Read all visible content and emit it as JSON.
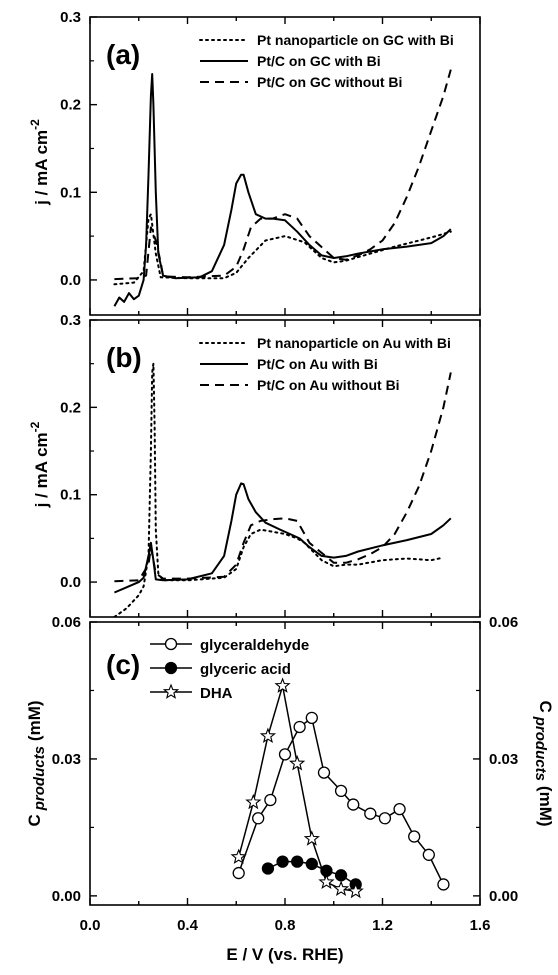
{
  "chart_data": [
    {
      "type": "line",
      "panel_label": "(a)",
      "ylabel": "j / mA cm",
      "ylabel_sup": "-2",
      "ylim": [
        -0.04,
        0.3
      ],
      "yticks": [
        0.0,
        0.1,
        0.2,
        0.3
      ],
      "ytick_labels": [
        "0.0",
        "0.1",
        "0.2",
        "0.3"
      ],
      "legend_position": "top-right",
      "series": [
        {
          "name": "Pt nanoparticle on GC with Bi",
          "style": "dotted",
          "x": [
            0.1,
            0.18,
            0.22,
            0.24,
            0.25,
            0.27,
            0.29,
            0.4,
            0.55,
            0.6,
            0.65,
            0.72,
            0.8,
            0.88,
            0.95,
            1.0,
            1.05,
            1.15,
            1.25,
            1.35,
            1.42,
            1.48
          ],
          "y": [
            -0.005,
            -0.003,
            0.01,
            0.07,
            0.075,
            0.03,
            0.003,
            0.002,
            0.002,
            0.008,
            0.025,
            0.045,
            0.05,
            0.043,
            0.025,
            0.02,
            0.022,
            0.03,
            0.038,
            0.045,
            0.05,
            0.055
          ]
        },
        {
          "name": "Pt/C on GC with Bi",
          "style": "solid",
          "x": [
            0.1,
            0.12,
            0.14,
            0.16,
            0.18,
            0.2,
            0.22,
            0.23,
            0.24,
            0.25,
            0.255,
            0.26,
            0.27,
            0.28,
            0.3,
            0.35,
            0.45,
            0.5,
            0.55,
            0.58,
            0.6,
            0.62,
            0.63,
            0.65,
            0.68,
            0.72,
            0.75,
            0.8,
            0.85,
            0.9,
            0.95,
            1.0,
            1.05,
            1.1,
            1.2,
            1.3,
            1.4,
            1.45,
            1.48
          ],
          "y": [
            -0.03,
            -0.02,
            -0.025,
            -0.015,
            -0.022,
            -0.018,
            0.0,
            0.04,
            0.12,
            0.21,
            0.235,
            0.2,
            0.1,
            0.03,
            0.005,
            0.002,
            0.003,
            0.01,
            0.04,
            0.08,
            0.11,
            0.12,
            0.12,
            0.1,
            0.075,
            0.07,
            0.07,
            0.068,
            0.055,
            0.04,
            0.028,
            0.025,
            0.027,
            0.03,
            0.035,
            0.038,
            0.042,
            0.05,
            0.058
          ]
        },
        {
          "name": "Pt/C on GC without Bi",
          "style": "dashed",
          "x": [
            0.1,
            0.2,
            0.23,
            0.25,
            0.27,
            0.29,
            0.3,
            0.4,
            0.55,
            0.6,
            0.63,
            0.66,
            0.7,
            0.75,
            0.8,
            0.85,
            0.9,
            1.0,
            1.05,
            1.1,
            1.15,
            1.2,
            1.25,
            1.3,
            1.35,
            1.4,
            1.45,
            1.48
          ],
          "y": [
            0.001,
            0.002,
            0.005,
            0.06,
            0.045,
            0.02,
            0.004,
            0.003,
            0.005,
            0.015,
            0.035,
            0.06,
            0.07,
            0.07,
            0.075,
            0.07,
            0.05,
            0.025,
            0.023,
            0.028,
            0.035,
            0.045,
            0.065,
            0.095,
            0.13,
            0.17,
            0.21,
            0.24
          ]
        }
      ]
    },
    {
      "type": "line",
      "panel_label": "(b)",
      "ylabel": "j / mA cm",
      "ylabel_sup": "-2",
      "ylim": [
        -0.04,
        0.3
      ],
      "yticks": [
        0.0,
        0.1,
        0.2,
        0.3
      ],
      "ytick_labels": [
        "0.0",
        "0.1",
        "0.2",
        "0.3"
      ],
      "legend_position": "top-right",
      "series": [
        {
          "name": "Pt nanoparticle on Au with Bi",
          "style": "dotted",
          "x": [
            0.1,
            0.15,
            0.2,
            0.22,
            0.24,
            0.25,
            0.255,
            0.26,
            0.265,
            0.27,
            0.28,
            0.3,
            0.4,
            0.55,
            0.6,
            0.63,
            0.66,
            0.7,
            0.8,
            0.85,
            0.88,
            0.95,
            1.0,
            1.05,
            1.1,
            1.2,
            1.3,
            1.4,
            1.45
          ],
          "y": [
            -0.04,
            -0.03,
            -0.015,
            -0.005,
            0.03,
            0.15,
            0.24,
            0.25,
            0.18,
            0.06,
            0.01,
            0.002,
            0.002,
            0.005,
            0.015,
            0.04,
            0.055,
            0.06,
            0.055,
            0.05,
            0.045,
            0.025,
            0.018,
            0.02,
            0.02,
            0.025,
            0.027,
            0.025,
            0.028
          ]
        },
        {
          "name": "Pt/C on Au with Bi",
          "style": "solid",
          "x": [
            0.1,
            0.15,
            0.2,
            0.22,
            0.24,
            0.25,
            0.26,
            0.27,
            0.3,
            0.4,
            0.5,
            0.55,
            0.58,
            0.6,
            0.62,
            0.63,
            0.65,
            0.68,
            0.72,
            0.78,
            0.82,
            0.86,
            0.88,
            0.9,
            0.95,
            1.0,
            1.05,
            1.1,
            1.2,
            1.3,
            1.4,
            1.45,
            1.48
          ],
          "y": [
            -0.012,
            -0.006,
            0.0,
            0.005,
            0.03,
            0.045,
            0.025,
            0.003,
            0.002,
            0.003,
            0.01,
            0.03,
            0.07,
            0.1,
            0.113,
            0.112,
            0.095,
            0.08,
            0.068,
            0.06,
            0.055,
            0.05,
            0.045,
            0.04,
            0.03,
            0.028,
            0.03,
            0.035,
            0.042,
            0.048,
            0.055,
            0.065,
            0.073
          ]
        },
        {
          "name": "Pt/C on Au without Bi",
          "style": "dashed",
          "x": [
            0.1,
            0.2,
            0.24,
            0.25,
            0.27,
            0.3,
            0.4,
            0.55,
            0.6,
            0.63,
            0.66,
            0.7,
            0.75,
            0.8,
            0.85,
            0.9,
            1.0,
            1.05,
            1.1,
            1.15,
            1.2,
            1.25,
            1.3,
            1.35,
            1.4,
            1.45,
            1.48
          ],
          "y": [
            0.001,
            0.002,
            0.02,
            0.04,
            0.01,
            0.004,
            0.004,
            0.006,
            0.02,
            0.045,
            0.065,
            0.07,
            0.072,
            0.073,
            0.07,
            0.045,
            0.022,
            0.022,
            0.026,
            0.032,
            0.04,
            0.055,
            0.08,
            0.11,
            0.15,
            0.2,
            0.24
          ]
        }
      ]
    },
    {
      "type": "scatter",
      "panel_label": "(c)",
      "ylabel_main": "C",
      "ylabel_sub": "products",
      "ylabel_unit": "(mM)",
      "ylim": [
        -0.002,
        0.06
      ],
      "yticks": [
        0.0,
        0.03,
        0.06
      ],
      "ytick_labels": [
        "0.00",
        "0.03",
        "0.06"
      ],
      "xlabel": "E / V (vs. RHE)",
      "xlim": [
        0.0,
        1.6
      ],
      "xticks": [
        0.0,
        0.4,
        0.8,
        1.2,
        1.6
      ],
      "xtick_labels": [
        "0.0",
        "0.4",
        "0.8",
        "1.2",
        "1.6"
      ],
      "legend_position": "top-left",
      "series": [
        {
          "name": "glyceraldehyde",
          "marker": "open-circle",
          "x": [
            0.61,
            0.69,
            0.74,
            0.8,
            0.86,
            0.91,
            0.96,
            1.03,
            1.08,
            1.15,
            1.21,
            1.27,
            1.33,
            1.39,
            1.45
          ],
          "y": [
            0.005,
            0.017,
            0.021,
            0.031,
            0.037,
            0.039,
            0.027,
            0.023,
            0.02,
            0.018,
            0.017,
            0.019,
            0.013,
            0.009,
            0.0025
          ]
        },
        {
          "name": "glyceric acid",
          "marker": "filled-circle",
          "x": [
            0.73,
            0.79,
            0.85,
            0.91,
            0.97,
            1.03,
            1.09
          ],
          "y": [
            0.006,
            0.0075,
            0.0075,
            0.007,
            0.0055,
            0.0045,
            0.0025
          ]
        },
        {
          "name": "DHA",
          "marker": "open-star",
          "x": [
            0.61,
            0.67,
            0.73,
            0.79,
            0.85,
            0.91,
            0.97,
            1.03,
            1.09
          ],
          "y": [
            0.0085,
            0.0205,
            0.035,
            0.046,
            0.029,
            0.0125,
            0.003,
            0.0015,
            0.001
          ]
        }
      ]
    }
  ]
}
